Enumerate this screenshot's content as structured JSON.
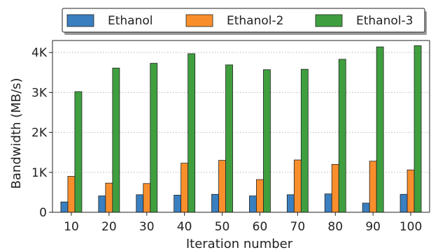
{
  "chart_data": {
    "type": "bar",
    "xlabel": "Iteration number",
    "ylabel": "Bandwidth (MB/s)",
    "categories": [
      "10",
      "20",
      "30",
      "40",
      "50",
      "60",
      "70",
      "80",
      "90",
      "100"
    ],
    "ylim": [
      0,
      4300
    ],
    "yticks": [
      0,
      1000,
      2000,
      3000,
      4000
    ],
    "ytick_labels": [
      "0",
      "1K",
      "2K",
      "3K",
      "4K"
    ],
    "grid": "horizontal dotted",
    "legend_position": "top-center",
    "series": [
      {
        "name": "Ethanol",
        "color": "#3a7fbf",
        "values": [
          260,
          410,
          440,
          430,
          450,
          410,
          440,
          460,
          230,
          450
        ]
      },
      {
        "name": "Ethanol-2",
        "color": "#f98f2c",
        "values": [
          900,
          730,
          720,
          1230,
          1300,
          820,
          1310,
          1200,
          1280,
          1060
        ]
      },
      {
        "name": "Ethanol-3",
        "color": "#3f9f3f",
        "values": [
          3020,
          3610,
          3730,
          3970,
          3690,
          3570,
          3580,
          3830,
          4140,
          4170
        ]
      }
    ]
  }
}
